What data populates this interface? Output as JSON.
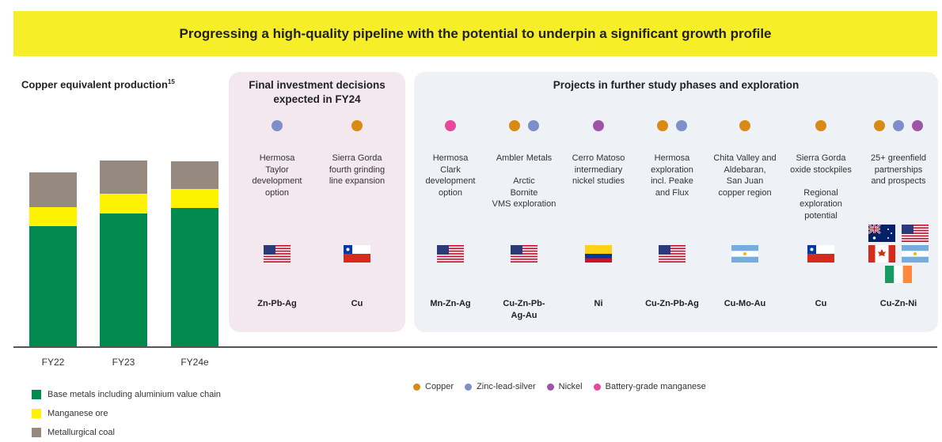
{
  "banner": {
    "title": "Progressing a high-quality pipeline with the potential to underpin a significant growth profile"
  },
  "chart_data": {
    "type": "bar",
    "stacked": true,
    "title": "Copper equivalent production",
    "title_superscript": "15",
    "categories": [
      "FY22",
      "FY23",
      "FY24e"
    ],
    "series": [
      {
        "name": "Base metals including aluminium value chain",
        "color": "#008a4e",
        "values": [
          153,
          169,
          176
        ]
      },
      {
        "name": "Manganese ore",
        "color": "#fdf200",
        "values": [
          24,
          25,
          24
        ]
      },
      {
        "name": "Metallurgical coal",
        "color": "#968a80",
        "values": [
          44,
          42,
          35
        ]
      }
    ],
    "ylim": [
      0,
      240
    ],
    "grid": false,
    "legend": "bottom-left"
  },
  "commodity_colors": {
    "copper": "#d98a14",
    "zinc_lead_silver": "#7d8fc9",
    "nickel": "#9e55a6",
    "manganese": "#e8489b"
  },
  "fid_panel": {
    "title": "Final investment decisions\nexpected in FY24",
    "projects": [
      {
        "dots": [
          "zinc_lead_silver"
        ],
        "name": "Hermosa\nTaylor\ndevelopment\noption",
        "flags": [
          "us"
        ],
        "commodity": "Zn-Pb-Ag"
      },
      {
        "dots": [
          "copper"
        ],
        "name": "Sierra Gorda\nfourth grinding\nline expansion",
        "flags": [
          "cl"
        ],
        "commodity": "Cu"
      }
    ]
  },
  "study_panel": {
    "title": "Projects in further study phases and exploration",
    "projects": [
      {
        "dots": [
          "manganese"
        ],
        "name": "Hermosa\nClark\ndevelopment\noption",
        "flags": [
          "us"
        ],
        "commodity": "Mn-Zn-Ag"
      },
      {
        "dots": [
          "copper",
          "zinc_lead_silver"
        ],
        "name": "Ambler Metals\n\nArctic\nBornite\nVMS exploration",
        "flags": [
          "us"
        ],
        "commodity": "Cu-Zn-Pb-\nAg-Au"
      },
      {
        "dots": [
          "nickel"
        ],
        "name": "Cerro Matoso\nintermediary\nnickel studies",
        "flags": [
          "co"
        ],
        "commodity": "Ni"
      },
      {
        "dots": [
          "copper",
          "zinc_lead_silver"
        ],
        "name": "Hermosa\nexploration\nincl. Peake\nand Flux",
        "flags": [
          "us"
        ],
        "commodity": "Cu-Zn-Pb-Ag"
      },
      {
        "dots": [
          "copper"
        ],
        "name": "Chita Valley and\nAldebaran,\nSan Juan\ncopper region",
        "flags": [
          "ar"
        ],
        "commodity": "Cu-Mo-Au"
      },
      {
        "dots": [
          "copper"
        ],
        "name": "Sierra Gorda\noxide stockpiles\n\nRegional\nexploration\npotential",
        "flags": [
          "cl"
        ],
        "commodity": "Cu"
      },
      {
        "dots": [
          "copper",
          "zinc_lead_silver",
          "nickel"
        ],
        "name": "25+ greenfield\npartnerships\nand prospects",
        "flags": [
          "au",
          "us",
          "ca",
          "ar",
          "ie"
        ],
        "commodity": "Cu-Zn-Ni"
      }
    ]
  },
  "legend_right": [
    {
      "key": "copper",
      "label": "Copper"
    },
    {
      "key": "zinc_lead_silver",
      "label": "Zinc-lead-silver"
    },
    {
      "key": "nickel",
      "label": "Nickel"
    },
    {
      "key": "manganese",
      "label": "Battery-grade manganese"
    }
  ]
}
